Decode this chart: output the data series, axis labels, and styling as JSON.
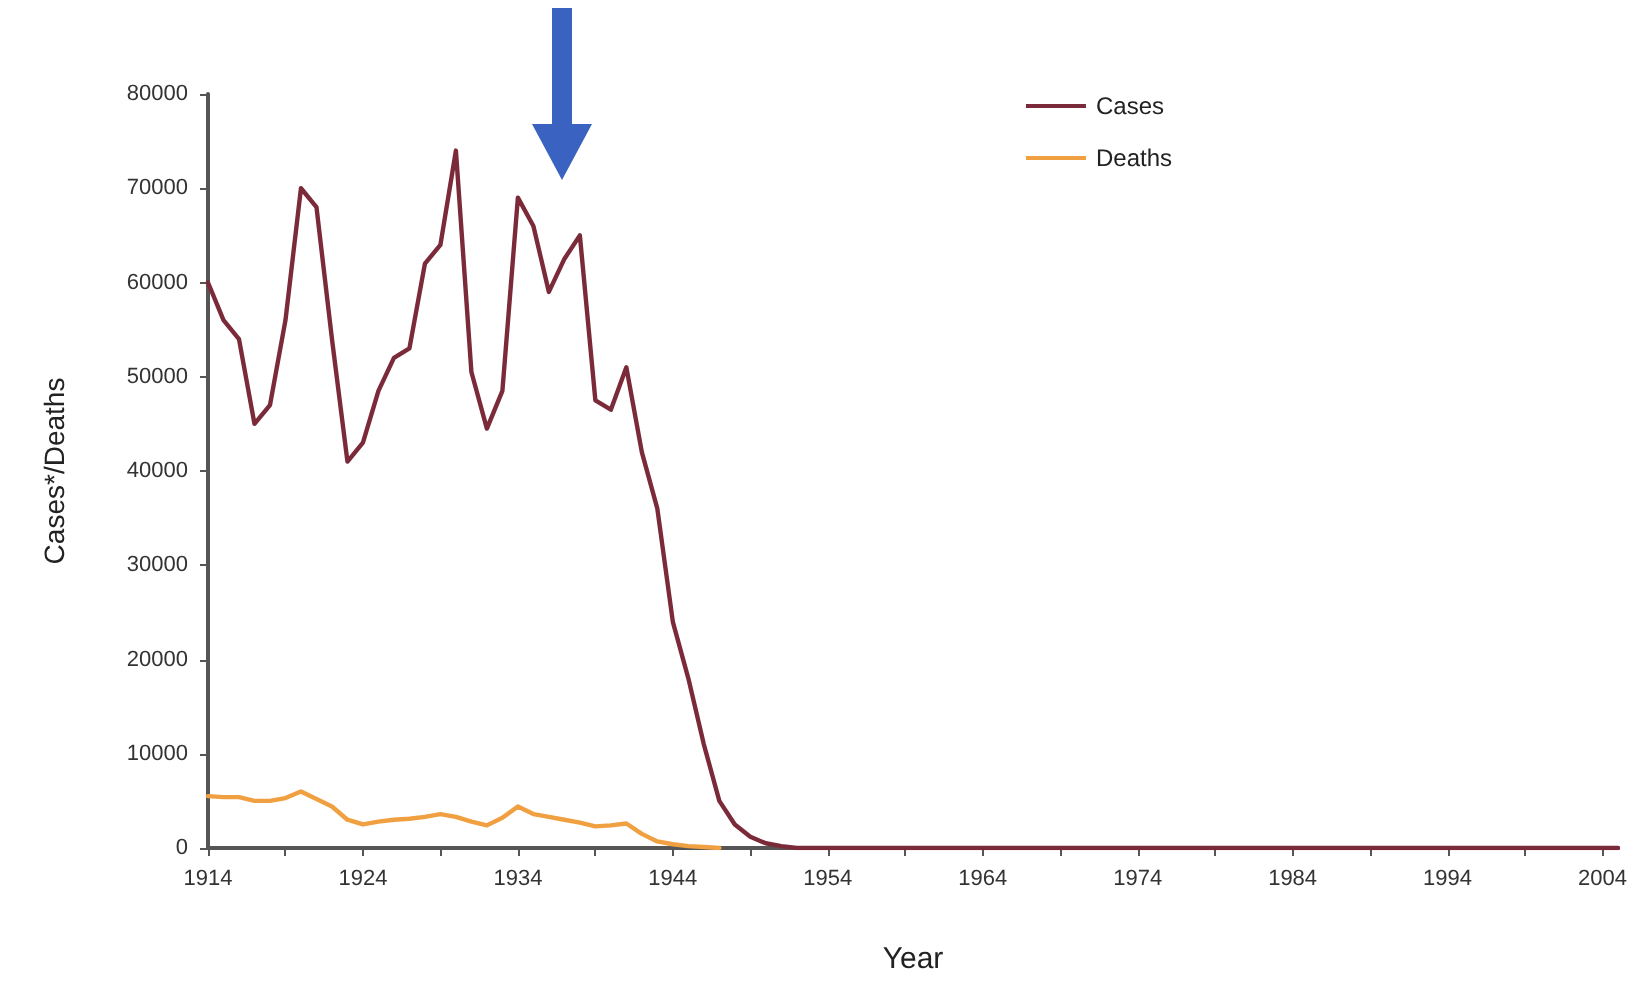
{
  "chart_data": {
    "type": "line",
    "xlabel": "Year",
    "ylabel": "Cases*/Deaths",
    "xlim": [
      1914,
      2005
    ],
    "xticks": [
      1914,
      {
        "value": 1919,
        "label": null
      },
      1924,
      {
        "value": 1929,
        "label": null
      },
      1934,
      {
        "value": 1939,
        "label": null
      },
      1944,
      {
        "value": 1949,
        "label": null
      },
      1954,
      {
        "value": 1959,
        "label": null
      },
      1964,
      {
        "value": 1969,
        "label": null
      },
      1974,
      {
        "value": 1979,
        "label": null
      },
      1984,
      {
        "value": 1989,
        "label": null
      },
      1994,
      {
        "value": 1999,
        "label": null
      },
      2004
    ],
    "ylim": [
      0,
      80000
    ],
    "yticks": [
      0,
      10000,
      20000,
      30000,
      40000,
      50000,
      60000,
      70000,
      80000
    ],
    "grid": false,
    "legend": "top right",
    "marker": "none",
    "line_style": "solid",
    "series": [
      {
        "name": "Cases",
        "color": "#7b2a3a",
        "x": [
          1914,
          1915,
          1916,
          1917,
          1918,
          1919,
          1920,
          1921,
          1922,
          1923,
          1924,
          1925,
          1926,
          1927,
          1928,
          1929,
          1930,
          1931,
          1932,
          1933,
          1934,
          1935,
          1936,
          1937,
          1938,
          1939,
          1940,
          1941,
          1942,
          1943,
          1944,
          1945,
          1946,
          1947,
          1948,
          1949,
          1950,
          1951,
          1952,
          1960,
          1970,
          1980,
          1990,
          2000,
          2005
        ],
        "values": [
          60000,
          56000,
          54000,
          45000,
          47000,
          56000,
          70000,
          68000,
          54000,
          41000,
          43000,
          48500,
          52000,
          53000,
          62000,
          64000,
          74000,
          50500,
          44500,
          48500,
          69000,
          66000,
          59000,
          62500,
          65000,
          47500,
          46500,
          51000,
          42000,
          36000,
          24000,
          18000,
          11000,
          5000,
          2500,
          1200,
          500,
          200,
          0,
          0,
          0,
          0,
          0,
          0,
          0
        ]
      },
      {
        "name": "Deaths",
        "color": "#f0a040",
        "x": [
          1914,
          1915,
          1916,
          1917,
          1918,
          1919,
          1920,
          1921,
          1922,
          1923,
          1924,
          1925,
          1926,
          1927,
          1928,
          1929,
          1930,
          1931,
          1932,
          1933,
          1934,
          1935,
          1936,
          1937,
          1938,
          1939,
          1940,
          1941,
          1942,
          1943,
          1944,
          1945,
          1946,
          1947
        ],
        "values": [
          5500,
          5400,
          5400,
          5000,
          5000,
          5300,
          6000,
          5200,
          4400,
          3000,
          2500,
          2800,
          3000,
          3100,
          3300,
          3600,
          3300,
          2800,
          2400,
          3200,
          4400,
          3600,
          3300,
          3000,
          2700,
          2300,
          2400,
          2600,
          1500,
          700,
          400,
          200,
          100,
          0
        ]
      }
    ]
  }
}
